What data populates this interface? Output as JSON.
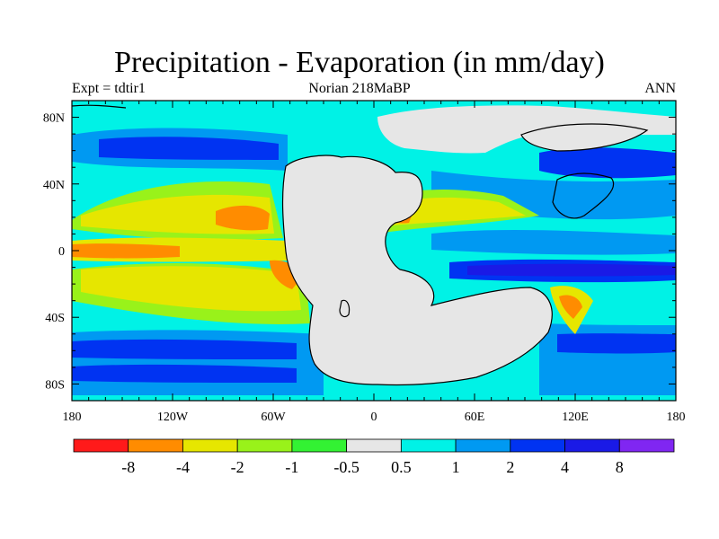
{
  "title": "Precipitation - Evaporation (in mm/day)",
  "left_label": "Expt = tdtir1",
  "center_label": "Norian   218MaBP",
  "right_label": "ANN",
  "x_ticks": [
    "180",
    "120W",
    "60W",
    "0",
    "60E",
    "120E",
    "180"
  ],
  "y_ticks": [
    "80N",
    "40N",
    "0",
    "40S",
    "80S"
  ],
  "colorbar": {
    "colors": [
      "#ff1a1a",
      "#ff8c00",
      "#e6e600",
      "#99f21a",
      "#33f233",
      "#e6e6e6",
      "#00f2e6",
      "#0099f2",
      "#0033f2",
      "#1a1ae6",
      "#8026f2"
    ],
    "labels": [
      "-8",
      "-4",
      "-2",
      "-1",
      "-0.5",
      "0.5",
      "1",
      "2",
      "4",
      "8"
    ]
  },
  "colors": {
    "ocean_wet": "#00f2e6",
    "land": "#e6e6e6",
    "dry_yellow": "#e6e600",
    "dry_orange": "#ff8c00",
    "blue": "#0099f2",
    "deep_blue": "#0033f2"
  }
}
